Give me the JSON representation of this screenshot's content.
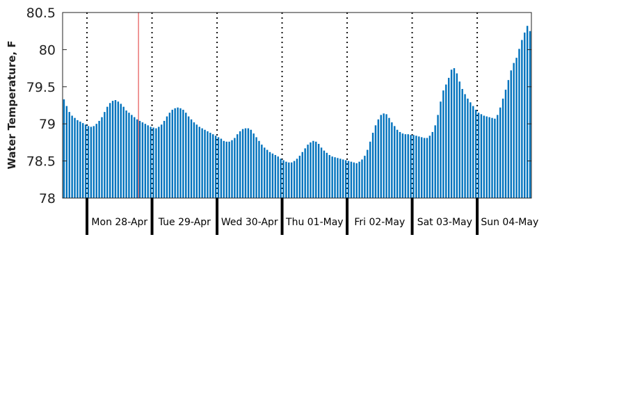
{
  "chart_data": {
    "type": "bar",
    "title": "",
    "xlabel": "",
    "ylabel": "Water Temperature, F",
    "ylim": [
      78,
      80.5
    ],
    "yticks": [
      "78",
      "78.5",
      "79",
      "79.5",
      "80",
      "80.5"
    ],
    "days": [
      "Mon 28-Apr",
      "Tue 29-Apr",
      "Wed 30-Apr",
      "Thu 01-May",
      "Fri 02-May",
      "Sat 03-May",
      "Sun 04-May"
    ],
    "x_start": "2025-04-27 15:00",
    "interval_hours": 1,
    "marker_time": "2025-04-28 19:00",
    "grid": "dotted vertical line at each midnight",
    "colors": {
      "bars": "#0072bd",
      "marker": "#e03030",
      "axes": "#222222"
    },
    "values": [
      79.33,
      79.24,
      79.16,
      79.11,
      79.08,
      79.05,
      79.03,
      79.01,
      78.99,
      78.97,
      78.96,
      78.97,
      79.0,
      79.04,
      79.09,
      79.16,
      79.23,
      79.28,
      79.31,
      79.32,
      79.3,
      79.27,
      79.23,
      79.18,
      79.15,
      79.12,
      79.09,
      79.06,
      79.04,
      79.02,
      79.0,
      78.98,
      78.96,
      78.95,
      78.94,
      78.96,
      78.99,
      79.04,
      79.1,
      79.15,
      79.19,
      79.21,
      79.22,
      79.21,
      79.19,
      79.15,
      79.1,
      79.06,
      79.02,
      78.99,
      78.96,
      78.94,
      78.92,
      78.9,
      78.88,
      78.86,
      78.84,
      78.82,
      78.8,
      78.77,
      78.76,
      78.76,
      78.78,
      78.81,
      78.86,
      78.9,
      78.93,
      78.94,
      78.94,
      78.92,
      78.87,
      78.82,
      78.77,
      78.72,
      78.68,
      78.65,
      78.62,
      78.6,
      78.58,
      78.56,
      78.53,
      78.51,
      78.49,
      78.48,
      78.48,
      78.5,
      78.53,
      78.57,
      78.62,
      78.67,
      78.72,
      78.75,
      78.77,
      78.76,
      78.73,
      78.68,
      78.64,
      78.61,
      78.58,
      78.56,
      78.55,
      78.54,
      78.53,
      78.52,
      78.51,
      78.5,
      78.49,
      78.48,
      78.47,
      78.49,
      78.52,
      78.57,
      78.65,
      78.76,
      78.88,
      78.98,
      79.06,
      79.12,
      79.14,
      79.13,
      79.08,
      79.02,
      78.97,
      78.92,
      78.89,
      78.87,
      78.86,
      78.86,
      78.85,
      78.85,
      78.84,
      78.83,
      78.82,
      78.81,
      78.81,
      78.84,
      78.89,
      78.98,
      79.12,
      79.3,
      79.45,
      79.53,
      79.62,
      79.73,
      79.75,
      79.68,
      79.57,
      79.47,
      79.4,
      79.34,
      79.29,
      79.24,
      79.19,
      79.15,
      79.13,
      79.11,
      79.1,
      79.09,
      79.08,
      79.07,
      79.12,
      79.22,
      79.34,
      79.46,
      79.59,
      79.72,
      79.82,
      79.89,
      80.01,
      80.13,
      80.23,
      80.32,
      80.25
    ]
  }
}
